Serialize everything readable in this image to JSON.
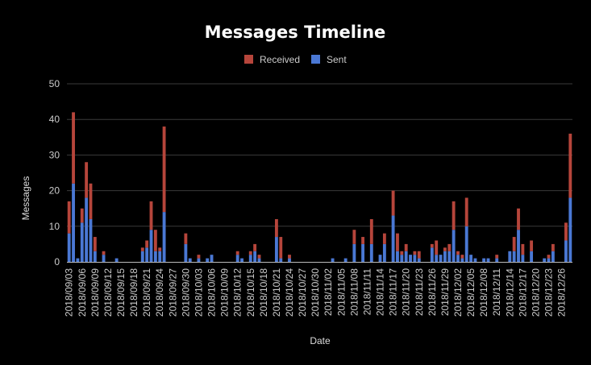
{
  "chart_data": {
    "type": "bar",
    "stacked": true,
    "title": "Messages Timeline",
    "xlabel": "Date",
    "ylabel": "Messages",
    "ylim": [
      0,
      50
    ],
    "yticks": [
      0,
      10,
      20,
      30,
      40,
      50
    ],
    "grid": true,
    "legend_position": "top",
    "x_tick_labels": [
      "2018/09/03",
      "2018/09/06",
      "2018/09/09",
      "2018/09/12",
      "2018/09/15",
      "2018/09/18",
      "2018/09/21",
      "2018/09/24",
      "2018/09/27",
      "2018/09/30",
      "2018/10/03",
      "2018/10/06",
      "2018/10/09",
      "2018/10/12",
      "2018/10/15",
      "2018/10/18",
      "2018/10/21",
      "2018/10/24",
      "2018/10/27",
      "2018/10/30",
      "2018/11/02",
      "2018/11/05",
      "2018/11/08",
      "2018/11/11",
      "2018/11/14",
      "2018/11/17",
      "2018/11/20",
      "2018/11/23",
      "2018/11/26",
      "2018/11/29",
      "2018/12/02",
      "2018/12/05",
      "2018/12/08",
      "2018/12/11",
      "2018/12/14",
      "2018/12/17",
      "2018/12/20",
      "2018/12/23",
      "2018/12/26"
    ],
    "x": [
      "2018/09/03",
      "2018/09/04",
      "2018/09/05",
      "2018/09/06",
      "2018/09/07",
      "2018/09/08",
      "2018/09/09",
      "2018/09/11",
      "2018/09/14",
      "2018/09/20",
      "2018/09/21",
      "2018/09/22",
      "2018/09/23",
      "2018/09/24",
      "2018/09/25",
      "2018/09/30",
      "2018/10/01",
      "2018/10/03",
      "2018/10/05",
      "2018/10/06",
      "2018/10/12",
      "2018/10/13",
      "2018/10/15",
      "2018/10/16",
      "2018/10/17",
      "2018/10/21",
      "2018/10/22",
      "2018/10/24",
      "2018/11/03",
      "2018/11/06",
      "2018/11/08",
      "2018/11/10",
      "2018/11/12",
      "2018/11/14",
      "2018/11/15",
      "2018/11/17",
      "2018/11/18",
      "2018/11/19",
      "2018/11/20",
      "2018/11/21",
      "2018/11/22",
      "2018/11/23",
      "2018/11/26",
      "2018/11/27",
      "2018/11/28",
      "2018/11/29",
      "2018/11/30",
      "2018/12/01",
      "2018/12/02",
      "2018/12/03",
      "2018/12/04",
      "2018/12/05",
      "2018/12/06",
      "2018/12/08",
      "2018/12/09",
      "2018/12/11",
      "2018/12/14",
      "2018/12/15",
      "2018/12/16",
      "2018/12/17",
      "2018/12/19",
      "2018/12/22",
      "2018/12/23",
      "2018/12/24",
      "2018/12/27",
      "2018/12/28"
    ],
    "series": [
      {
        "name": "Sent",
        "color": "#4a78d4",
        "values": [
          8,
          22,
          1,
          11,
          18,
          12,
          3,
          2,
          1,
          3,
          4,
          9,
          3,
          3,
          14,
          5,
          1,
          1,
          1,
          2,
          2,
          1,
          2,
          3,
          1,
          7,
          1,
          1,
          1,
          1,
          5,
          5,
          5,
          2,
          5,
          13,
          3,
          2,
          3,
          2,
          2,
          1,
          4,
          2,
          2,
          3,
          3,
          9,
          2,
          1,
          10,
          2,
          1,
          1,
          1,
          1,
          3,
          3,
          9,
          2,
          3,
          1,
          1,
          3,
          6,
          18
        ]
      },
      {
        "name": "Received",
        "color": "#b6453b",
        "values": [
          9,
          20,
          0,
          4,
          10,
          10,
          4,
          1,
          0,
          1,
          2,
          8,
          6,
          1,
          24,
          3,
          0,
          1,
          0,
          0,
          1,
          0,
          1,
          2,
          1,
          5,
          6,
          1,
          0,
          0,
          4,
          2,
          7,
          0,
          3,
          7,
          5,
          1,
          2,
          0,
          1,
          2,
          1,
          4,
          0,
          1,
          2,
          8,
          1,
          1,
          8,
          0,
          0,
          0,
          0,
          1,
          0,
          4,
          6,
          3,
          3,
          0,
          1,
          2,
          5,
          18
        ]
      }
    ]
  }
}
